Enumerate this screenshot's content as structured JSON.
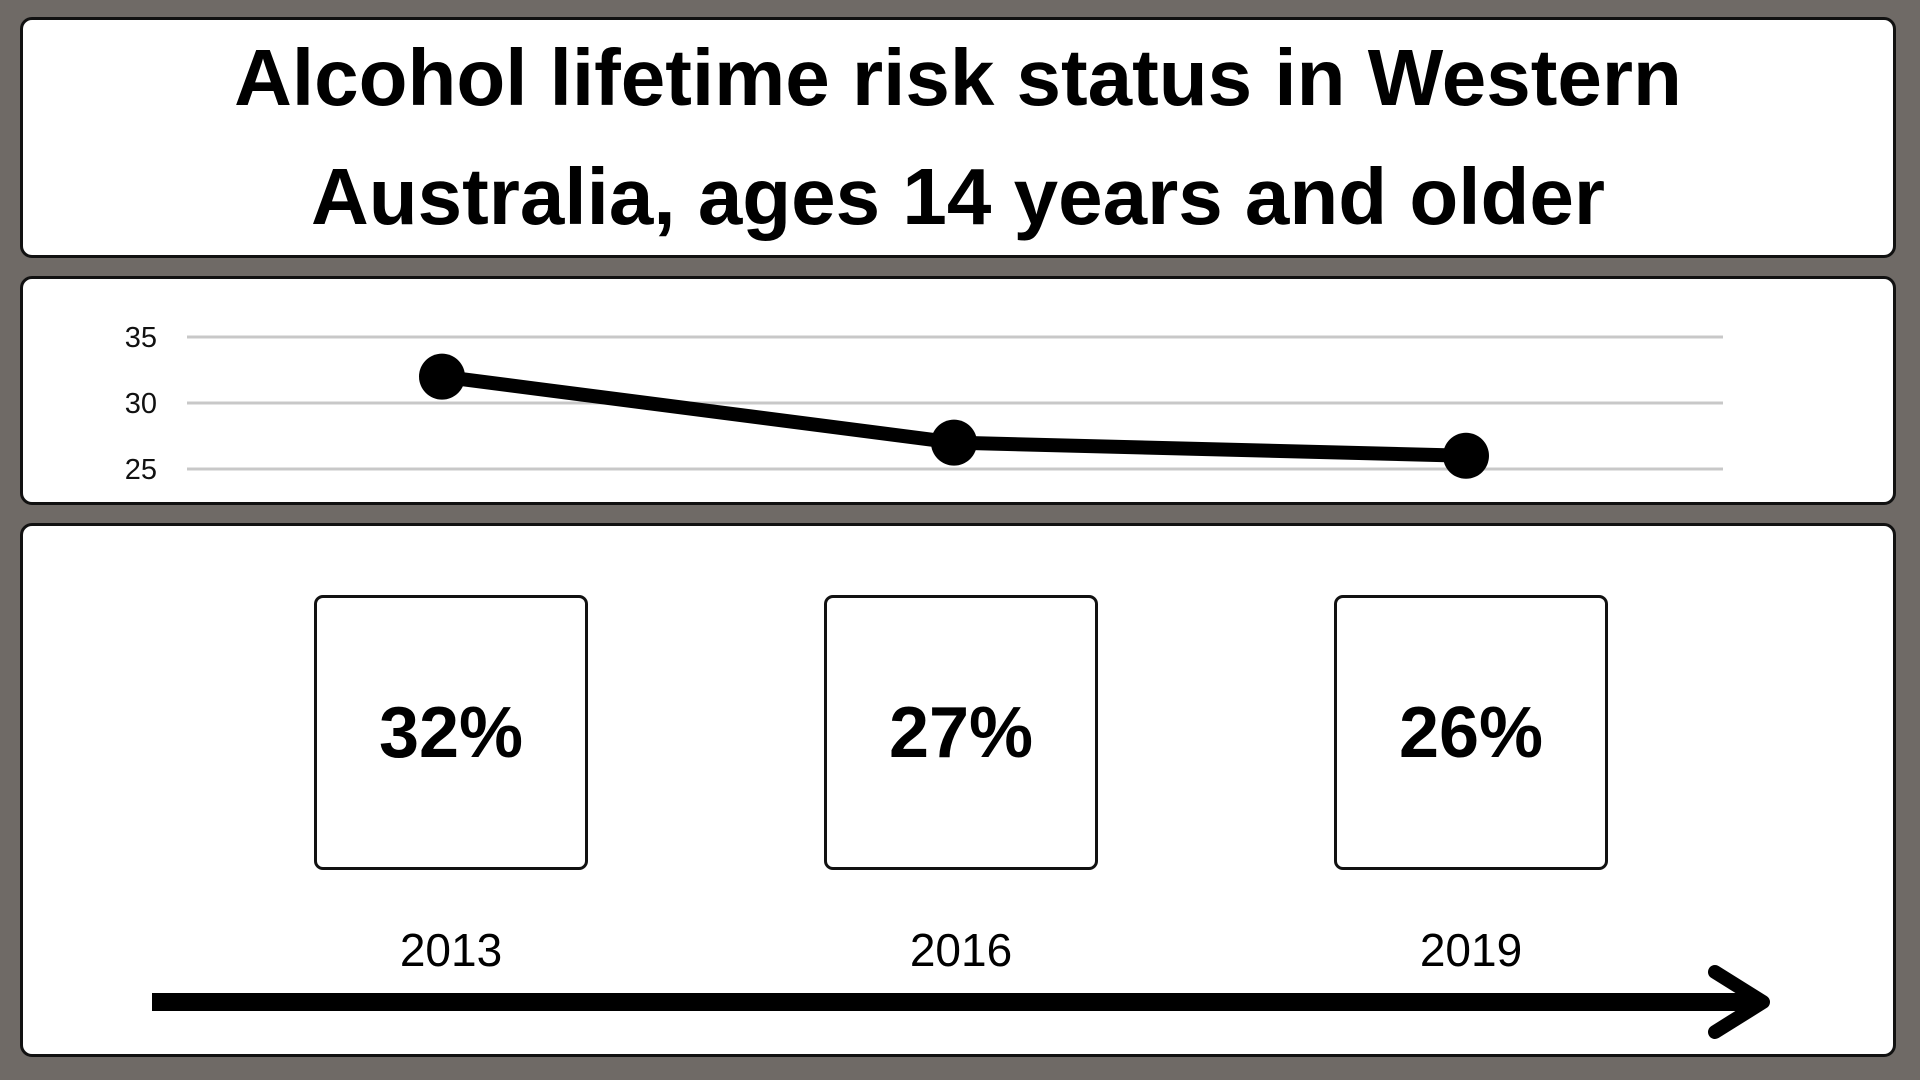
{
  "title": "Alcohol lifetime risk status in Western Australia, ages 14 years and older",
  "colors": {
    "background": "#6f6a66",
    "panel": "#ffffff",
    "ink": "#000000",
    "grid": "#c8c8c8"
  },
  "chart_data": {
    "type": "line",
    "title": "",
    "xlabel": "",
    "ylabel": "",
    "x": [
      "2013",
      "2016",
      "2019"
    ],
    "series": [
      {
        "values": [
          32,
          27,
          26
        ]
      }
    ],
    "yticks": [
      "35",
      "30",
      "25"
    ],
    "ylim": [
      25,
      35
    ],
    "grid": true
  },
  "stats": [
    {
      "value": "32%",
      "year": "2013"
    },
    {
      "value": "27%",
      "year": "2016"
    },
    {
      "value": "26%",
      "year": "2019"
    }
  ],
  "timeline_icon": "arrow-right-icon"
}
